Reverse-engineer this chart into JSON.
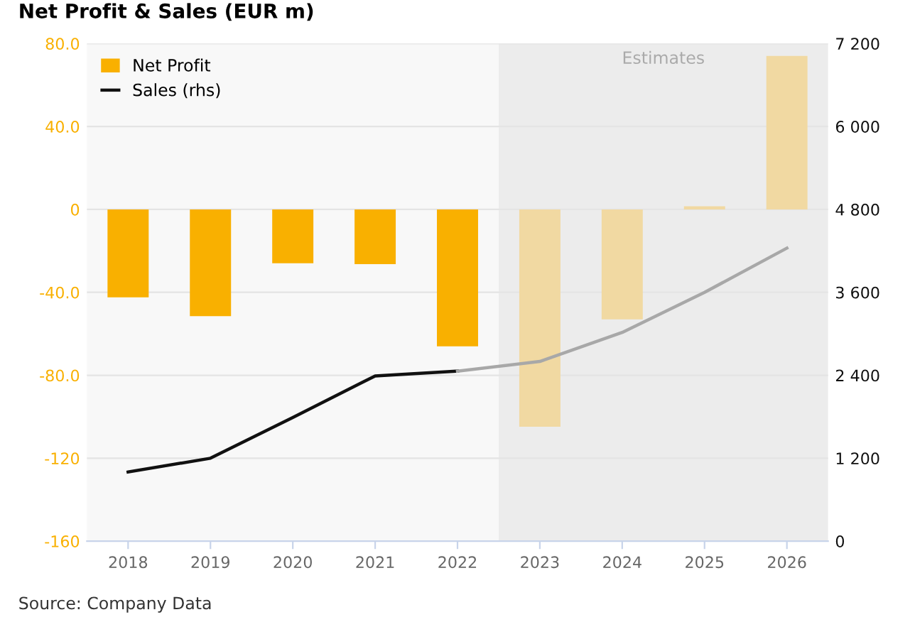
{
  "chart_data": {
    "type": "bar",
    "title": "Net Profit & Sales (EUR m)",
    "categories": [
      "2018",
      "2019",
      "2020",
      "2021",
      "2022",
      "2023",
      "2024",
      "2025",
      "2026"
    ],
    "series": [
      {
        "name": "Net Profit",
        "color": "#f9b000",
        "colors": [
          "#f9b000",
          "#f9b000",
          "#f9b000",
          "#f9b000",
          "#f9b000",
          "#f1d9a2",
          "#f1d9a2",
          "#f1d9a2",
          "#f1d9a2"
        ],
        "values": [
          -42.4,
          -51.5,
          -26,
          -26.4,
          -66,
          -104.8,
          -53,
          1.5,
          74
        ]
      },
      {
        "name": "Sales (rhs)",
        "type": "line",
        "axis": "y2",
        "color": "#111111",
        "values": [
          1000,
          1200,
          1790,
          2390,
          2460,
          null,
          null,
          null,
          null
        ]
      },
      {
        "type": "line",
        "axis": "y2",
        "color": "#a8a8a8",
        "values": [
          null,
          null,
          null,
          null,
          2460,
          2600,
          3020,
          3600,
          4240
        ]
      }
    ],
    "ylim": [
      -160,
      80
    ],
    "yticks": [
      {
        "value": -160,
        "label": "-160"
      },
      {
        "value": -120,
        "label": "-120"
      },
      {
        "value": -80,
        "label": "-80.0"
      },
      {
        "value": -40,
        "label": "-40.0"
      },
      0,
      {
        "value": 40,
        "label": "40.0"
      },
      {
        "value": 80,
        "label": "80.0"
      }
    ],
    "y2lim": [
      0,
      7200
    ],
    "y2ticks": [
      0,
      {
        "value": 1200,
        "label": "1 200"
      },
      {
        "value": 2400,
        "label": "2 400"
      },
      {
        "value": 3600,
        "label": "3 600"
      },
      {
        "value": 4800,
        "label": "4 800"
      },
      {
        "value": 6000,
        "label": "6 000"
      },
      {
        "value": 7200,
        "label": "7 200"
      }
    ],
    "bands": [
      {
        "axis": "x",
        "from": "2023",
        "to": "2026",
        "label": "Estimates",
        "color": "#ececec"
      }
    ],
    "grid": "y",
    "legend": "top left",
    "annotations": [
      "Source: Company Data"
    ]
  }
}
